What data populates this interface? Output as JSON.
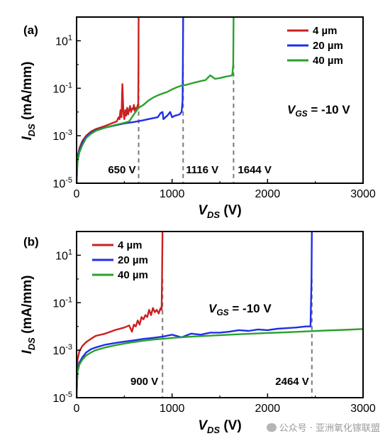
{
  "chart_data": [
    {
      "panel_label": "(a)",
      "type": "line",
      "xlabel_main": "V",
      "xlabel_sub": "DS",
      "xlabel_unit": " (V)",
      "ylabel_main": "I",
      "ylabel_sub": "DS",
      "ylabel_unit": " (mA/mm)",
      "xlim": [
        0,
        3000
      ],
      "ylim": [
        1e-05,
        100
      ],
      "yscale": "log",
      "xticks": [
        "0",
        "1000",
        "2000",
        "3000"
      ],
      "yticks": [
        {
          "base": "10",
          "exp": "1"
        },
        {
          "base": "10",
          "exp": "-1"
        },
        {
          "base": "10",
          "exp": "-3"
        },
        {
          "base": "10",
          "exp": "-5"
        }
      ],
      "condition": {
        "main": "V",
        "sub": "GS",
        "rest": " = -10 V"
      },
      "legend_position": "top-right",
      "series": [
        {
          "name": "4 µm",
          "color": "#cc1f1f",
          "x": [
            0,
            10,
            30,
            60,
            100,
            150,
            200,
            260,
            320,
            380,
            420,
            440,
            450,
            460,
            470,
            480,
            490,
            500,
            510,
            520,
            530,
            540,
            550,
            560,
            570,
            580,
            590,
            600,
            610,
            620,
            630,
            640,
            645,
            648,
            650
          ],
          "y": [
            1e-05,
            0.00012,
            0.0003,
            0.0006,
            0.001,
            0.0015,
            0.0019,
            0.0023,
            0.0028,
            0.0035,
            0.004,
            0.006,
            0.005,
            0.012,
            0.006,
            0.15,
            0.01,
            0.005,
            0.012,
            0.007,
            0.015,
            0.008,
            0.012,
            0.018,
            0.01,
            0.014,
            0.013,
            0.02,
            0.011,
            0.015,
            0.012,
            0.02,
            0.016,
            1,
            100
          ]
        },
        {
          "name": "20 µm",
          "color": "#1f2ee6",
          "x": [
            0,
            10,
            30,
            60,
            100,
            150,
            200,
            300,
            400,
            500,
            600,
            700,
            750,
            800,
            850,
            880,
            900,
            910,
            930,
            950,
            980,
            1000,
            1030,
            1060,
            1080,
            1090,
            1100,
            1110,
            1113,
            1116
          ],
          "y": [
            1e-05,
            0.0001,
            0.00025,
            0.0005,
            0.0009,
            0.0013,
            0.0017,
            0.0022,
            0.0027,
            0.0033,
            0.0038,
            0.0045,
            0.005,
            0.0055,
            0.006,
            0.009,
            0.01,
            0.005,
            0.006,
            0.007,
            0.01,
            0.006,
            0.007,
            0.0075,
            0.008,
            0.009,
            0.01,
            0.03,
            1,
            100
          ]
        },
        {
          "name": "40 µm",
          "color": "#2aa12e",
          "x": [
            0,
            10,
            30,
            60,
            100,
            150,
            200,
            300,
            400,
            500,
            550,
            600,
            650,
            700,
            750,
            800,
            850,
            900,
            950,
            1000,
            1050,
            1100,
            1150,
            1200,
            1250,
            1300,
            1350,
            1400,
            1450,
            1500,
            1550,
            1600,
            1630,
            1640,
            1644
          ],
          "y": [
            1e-05,
            8e-05,
            0.0002,
            0.0004,
            0.0008,
            0.0012,
            0.0016,
            0.0022,
            0.0028,
            0.0035,
            0.004,
            0.008,
            0.015,
            0.02,
            0.03,
            0.04,
            0.05,
            0.06,
            0.07,
            0.09,
            0.11,
            0.13,
            0.14,
            0.16,
            0.18,
            0.2,
            0.22,
            0.35,
            0.25,
            0.27,
            0.3,
            0.33,
            0.35,
            1,
            100
          ]
        }
      ],
      "markers": [
        {
          "x": 650,
          "label": "650 V"
        },
        {
          "x": 1116,
          "label": "1116 V"
        },
        {
          "x": 1644,
          "label": "1644 V"
        }
      ]
    },
    {
      "panel_label": "(b)",
      "type": "line",
      "xlabel_main": "V",
      "xlabel_sub": "DS",
      "xlabel_unit": " (V)",
      "ylabel_main": "I",
      "ylabel_sub": "DS",
      "ylabel_unit": " (mA/mm)",
      "xlim": [
        0,
        3000
      ],
      "ylim": [
        1e-05,
        100
      ],
      "yscale": "log",
      "xticks": [
        "0",
        "1000",
        "2000",
        "3000"
      ],
      "yticks": [
        {
          "base": "10",
          "exp": "1"
        },
        {
          "base": "10",
          "exp": "-1"
        },
        {
          "base": "10",
          "exp": "-3"
        },
        {
          "base": "10",
          "exp": "-5"
        }
      ],
      "condition": {
        "main": "V",
        "sub": "GS",
        "rest": " = -10 V"
      },
      "legend_position": "top-left",
      "series": [
        {
          "name": "4 µm",
          "color": "#cc1f1f",
          "x": [
            0,
            10,
            30,
            60,
            100,
            150,
            200,
            300,
            400,
            500,
            550,
            580,
            600,
            620,
            640,
            660,
            680,
            700,
            720,
            740,
            760,
            780,
            800,
            820,
            840,
            860,
            880,
            890,
            895,
            900
          ],
          "y": [
            1e-05,
            0.0004,
            0.0009,
            0.0015,
            0.0022,
            0.003,
            0.004,
            0.005,
            0.007,
            0.009,
            0.011,
            0.006,
            0.012,
            0.01,
            0.018,
            0.012,
            0.025,
            0.02,
            0.03,
            0.025,
            0.05,
            0.03,
            0.06,
            0.04,
            0.05,
            0.035,
            0.06,
            0.05,
            1,
            100
          ]
        },
        {
          "name": "20 µm",
          "color": "#1f2ee6",
          "x": [
            0,
            10,
            30,
            60,
            100,
            150,
            200,
            300,
            400,
            500,
            600,
            700,
            800,
            900,
            1000,
            1100,
            1200,
            1300,
            1400,
            1500,
            1600,
            1700,
            1800,
            1900,
            2000,
            2100,
            2200,
            2300,
            2400,
            2450,
            2460,
            2464
          ],
          "y": [
            1e-05,
            0.00015,
            0.0003,
            0.0005,
            0.0008,
            0.0011,
            0.0013,
            0.0017,
            0.002,
            0.0023,
            0.0026,
            0.003,
            0.0033,
            0.0037,
            0.0045,
            0.0035,
            0.005,
            0.0045,
            0.0055,
            0.0055,
            0.006,
            0.007,
            0.0065,
            0.0075,
            0.007,
            0.008,
            0.0085,
            0.009,
            0.01,
            0.01,
            1,
            100
          ]
        },
        {
          "name": "40 µm",
          "color": "#2aa12e",
          "x": [
            0,
            10,
            30,
            60,
            100,
            150,
            200,
            300,
            400,
            500,
            600,
            700,
            800,
            900,
            1000,
            1200,
            1400,
            1600,
            1800,
            2000,
            2200,
            2400,
            2600,
            2800,
            3000
          ],
          "y": [
            1e-05,
            0.00012,
            0.00025,
            0.0004,
            0.0006,
            0.0008,
            0.001,
            0.0013,
            0.0016,
            0.0019,
            0.0022,
            0.0025,
            0.0028,
            0.003,
            0.0033,
            0.0037,
            0.0041,
            0.0045,
            0.0049,
            0.0053,
            0.0057,
            0.0062,
            0.0067,
            0.0072,
            0.0078
          ]
        }
      ],
      "markers": [
        {
          "x": 900,
          "label": "900 V"
        },
        {
          "x": 2464,
          "label": "2464 V"
        }
      ]
    }
  ],
  "watermark": {
    "text": "公众号 · 亚洲氧化镓联盟",
    "icon": "wechat-icon"
  }
}
